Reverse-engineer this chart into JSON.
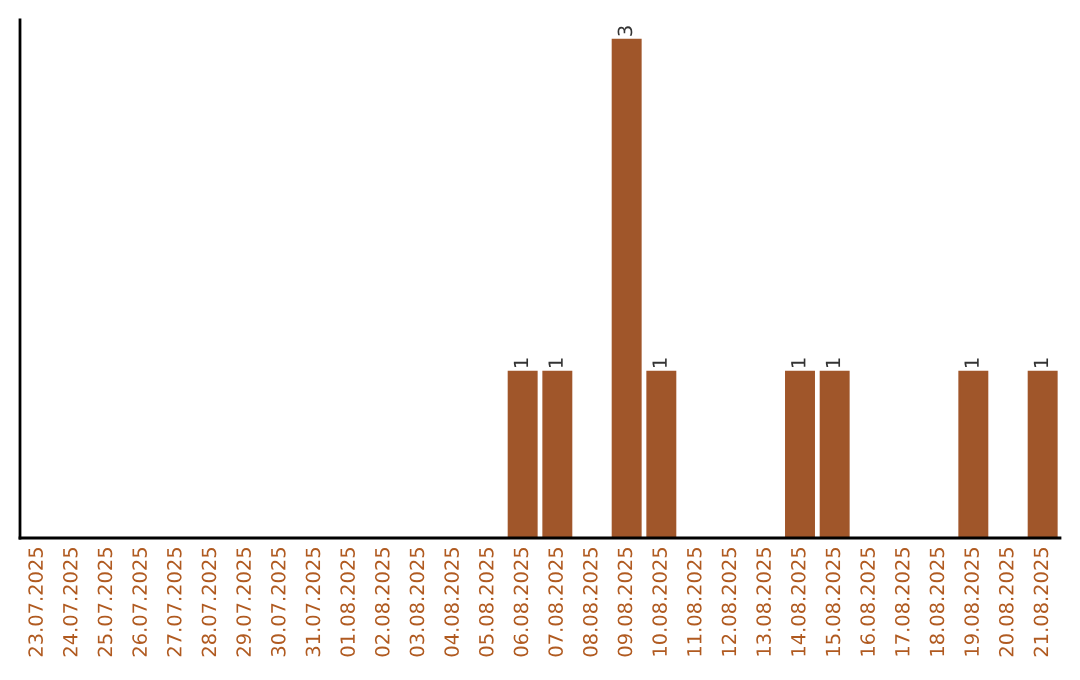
{
  "chart_data": {
    "type": "bar",
    "categories": [
      "23.07.2025",
      "24.07.2025",
      "25.07.2025",
      "26.07.2025",
      "27.07.2025",
      "28.07.2025",
      "29.07.2025",
      "30.07.2025",
      "31.07.2025",
      "01.08.2025",
      "02.08.2025",
      "03.08.2025",
      "04.08.2025",
      "05.08.2025",
      "06.08.2025",
      "07.08.2025",
      "08.08.2025",
      "09.08.2025",
      "10.08.2025",
      "11.08.2025",
      "12.08.2025",
      "13.08.2025",
      "14.08.2025",
      "15.08.2025",
      "16.08.2025",
      "17.08.2025",
      "18.08.2025",
      "19.08.2025",
      "20.08.2025",
      "21.08.2025"
    ],
    "values": [
      null,
      null,
      null,
      null,
      null,
      null,
      null,
      null,
      null,
      null,
      null,
      null,
      null,
      null,
      1,
      1,
      null,
      3,
      1,
      null,
      null,
      null,
      1,
      1,
      null,
      null,
      null,
      1,
      null,
      1
    ],
    "value_labels": [
      null,
      null,
      null,
      null,
      null,
      null,
      null,
      null,
      null,
      null,
      null,
      null,
      null,
      null,
      "1",
      "1",
      null,
      "3",
      "1",
      null,
      null,
      null,
      "1",
      "1",
      null,
      null,
      null,
      "1",
      null,
      "1"
    ],
    "color": "#a0562a",
    "ylim": [
      0,
      3.12
    ],
    "tick_labels": "x",
    "grid": false,
    "legend": false
  }
}
